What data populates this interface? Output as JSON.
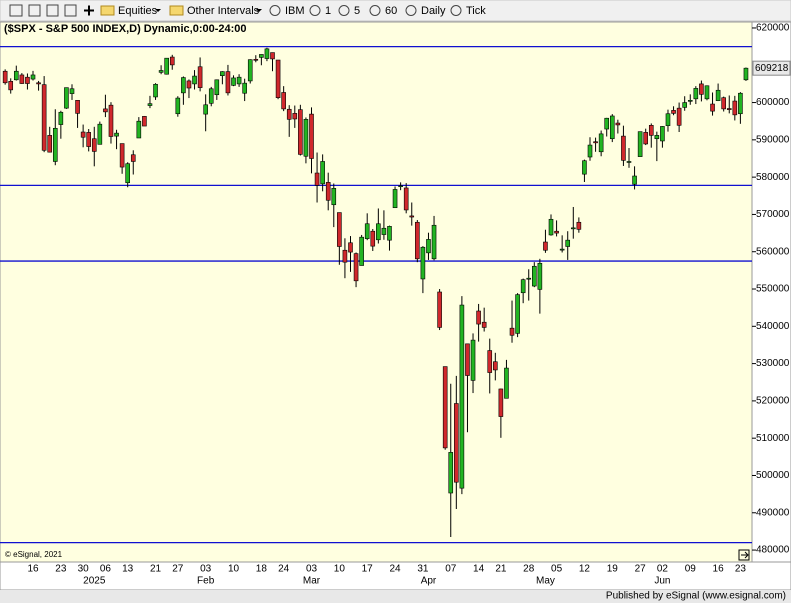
{
  "toolbar": {
    "items": [
      "Equities",
      "Other Intervals",
      "IBM",
      "1",
      "5",
      "60",
      "Daily",
      "Tick"
    ]
  },
  "footer": {
    "publisher": "Published by eSignal (www.esignal.com)",
    "copyright": "© eSignal, 2021"
  },
  "chart_data": {
    "type": "candlestick",
    "title": "($SPX - S&P 500 INDEX,D) Dynamic,0:00-24:00",
    "categories": [
      null,
      null,
      null,
      null,
      null,
      "16",
      null,
      null,
      null,
      null,
      "23",
      null,
      null,
      null,
      "30",
      null,
      null,
      null,
      "06",
      null,
      null,
      null,
      "13",
      null,
      null,
      null,
      null,
      "21",
      null,
      null,
      null,
      "27",
      null,
      null,
      null,
      null,
      "03",
      null,
      null,
      null,
      null,
      "10",
      null,
      null,
      null,
      null,
      "18",
      null,
      null,
      null,
      "24",
      null,
      null,
      null,
      null,
      "03",
      null,
      null,
      null,
      null,
      "10",
      null,
      null,
      null,
      null,
      "17",
      null,
      null,
      null,
      null,
      "24",
      null,
      null,
      null,
      null,
      "31",
      null,
      null,
      null,
      null,
      "07",
      null,
      null,
      null,
      null,
      "14",
      null,
      null,
      null,
      "21",
      null,
      null,
      null,
      null,
      "28",
      null,
      null,
      null,
      null,
      "05",
      null,
      null,
      null,
      null,
      "12",
      null,
      null,
      null,
      null,
      "19",
      null,
      null,
      null,
      null,
      "27",
      null,
      null,
      null,
      "02",
      null,
      null,
      null,
      null,
      "09",
      null,
      null,
      null,
      null,
      "16",
      null,
      null,
      null,
      "23",
      null
    ],
    "month_labels": [
      null,
      null,
      null,
      null,
      null,
      null,
      null,
      null,
      null,
      null,
      null,
      null,
      null,
      null,
      null,
      null,
      "2025",
      null,
      null,
      null,
      null,
      null,
      null,
      null,
      null,
      null,
      null,
      null,
      null,
      null,
      null,
      null,
      null,
      null,
      null,
      null,
      "Feb",
      null,
      null,
      null,
      null,
      null,
      null,
      null,
      null,
      null,
      null,
      null,
      null,
      null,
      null,
      null,
      null,
      null,
      null,
      "Mar",
      null,
      null,
      null,
      null,
      null,
      null,
      null,
      null,
      null,
      null,
      null,
      null,
      null,
      null,
      null,
      null,
      null,
      null,
      null,
      null,
      "Apr",
      null,
      null,
      null,
      null,
      null,
      null,
      null,
      null,
      null,
      null,
      null,
      null,
      null,
      null,
      null,
      null,
      null,
      null,
      null,
      null,
      "May",
      null,
      null,
      null,
      null,
      null,
      null,
      null,
      null,
      null,
      null,
      null,
      null,
      null,
      null,
      null,
      null,
      null,
      null,
      null,
      null,
      "Jun",
      null,
      null,
      null,
      null,
      null,
      null,
      null,
      null,
      null,
      null,
      null,
      null,
      null,
      null,
      null
    ],
    "open": [
      6084,
      6057,
      6061,
      6074,
      6068,
      6063,
      6053,
      6048,
      5912,
      5842,
      5941,
      5985,
      6024,
      6006,
      5921,
      5920,
      5903,
      5888,
      5983,
      5993,
      5910,
      5890,
      5785,
      5860,
      5905,
      5963,
      5992,
      6015,
      6081,
      6076,
      6122,
      5970,
      6026,
      6058,
      6050,
      6096,
      5969,
      5998,
      6021,
      6072,
      6083,
      6046,
      6050,
      6025,
      6058,
      6116,
      6121,
      6118,
      6134,
      6114,
      6027,
      5982,
      5971,
      5981,
      5856,
      5969,
      5811,
      5782,
      5786,
      5726,
      5705,
      5604,
      5624,
      5595,
      5563,
      5635,
      5655,
      5632,
      5646,
      5631,
      5718,
      5776,
      5771,
      5696,
      5679,
      5527,
      5597,
      5581,
      5492,
      5292,
      4953,
      5193,
      4966,
      5353,
      5255,
      5441,
      5411,
      5335,
      5305,
      5232,
      5207,
      5395,
      5381,
      5490,
      5529,
      5508,
      5499,
      5626,
      5645,
      5655,
      5606,
      5614,
      5663,
      5679,
      5808,
      5854,
      5895,
      5868,
      5929,
      5903,
      5945,
      5910,
      5841,
      5781,
      5855,
      5920,
      5939,
      5903,
      5897,
      5938,
      5979,
      5985,
      5987,
      6005,
      6010,
      6050,
      6010,
      5996,
      6005,
      6013,
      5984,
      6004,
      5970,
      6061
    ],
    "high": [
      6089,
      6065,
      6099,
      6079,
      6078,
      6085,
      6058,
      6071,
      5935,
      5982,
      5978,
      6040,
      6049,
      6006,
      5941,
      5929,
      5935,
      5949,
      6021,
      6001,
      5927,
      5890,
      5840,
      5872,
      5961,
      5964,
      6018,
      6052,
      6100,
      6119,
      6128,
      6017,
      6070,
      6062,
      6087,
      6121,
      6022,
      6042,
      6062,
      6084,
      6101,
      6073,
      6076,
      6064,
      6116,
      6127,
      6129,
      6147,
      6134,
      6114,
      6044,
      5993,
      5992,
      5994,
      5960,
      5987,
      5866,
      5861,
      5812,
      5783,
      5705,
      5636,
      5642,
      5598,
      5645,
      5703,
      5661,
      5716,
      5711,
      5670,
      5775,
      5786,
      5784,
      5732,
      5685,
      5615,
      5651,
      5696,
      5500,
      5292,
      5246,
      5267,
      5481,
      5353,
      5381,
      5460,
      5450,
      5367,
      5329,
      5233,
      5310,
      5469,
      5489,
      5528,
      5553,
      5572,
      5581,
      5659,
      5700,
      5684,
      5644,
      5655,
      5720,
      5692,
      5847,
      5907,
      5906,
      5925,
      5959,
      5969,
      5954,
      5938,
      5878,
      5829,
      5922,
      5930,
      5944,
      5922,
      5937,
      5981,
      5990,
      6000,
      6017,
      6022,
      6044,
      6059,
      6046,
      6027,
      6051,
      6016,
      6019,
      6018,
      6028,
      6094
    ],
    "low": [
      6048,
      6024,
      6059,
      6050,
      6035,
      6059,
      6032,
      5867,
      5866,
      5832,
      5903,
      5983,
      6007,
      5932,
      5880,
      5869,
      5829,
      5888,
      5961,
      5890,
      5875,
      5809,
      5773,
      5807,
      5905,
      5938,
      5985,
      6007,
      6076,
      6075,
      6088,
      5962,
      5994,
      6012,
      6035,
      6030,
      5923,
      5990,
      6007,
      6049,
      6019,
      6044,
      6042,
      6004,
      6051,
      6108,
      6100,
      6111,
      6084,
      6009,
      5977,
      5908,
      5932,
      5858,
      5837,
      5810,
      5732,
      5762,
      5711,
      5666,
      5565,
      5529,
      5546,
      5505,
      5563,
      5631,
      5602,
      5622,
      5632,
      5603,
      5718,
      5765,
      5703,
      5670,
      5572,
      5489,
      5578,
      5577,
      5390,
      5069,
      4835,
      4910,
      4950,
      5116,
      5221,
      5359,
      5386,
      5220,
      5255,
      5101,
      5207,
      5356,
      5371,
      5462,
      5469,
      5505,
      5434,
      5597,
      5643,
      5641,
      5598,
      5578,
      5635,
      5651,
      5787,
      5844,
      5868,
      5856,
      5909,
      5894,
      5917,
      5830,
      5825,
      5767,
      5855,
      5886,
      5879,
      5843,
      5879,
      5922,
      5966,
      5921,
      5978,
      5994,
      5996,
      6003,
      6006,
      5965,
      6004,
      5976,
      5971,
      5952,
      5943,
      6058
    ],
    "close": [
      6053,
      6034,
      6084,
      6051,
      6051,
      6074,
      6050,
      5872,
      5867,
      5931,
      5974,
      6040,
      6037,
      5971,
      5907,
      5882,
      5869,
      5942,
      5975,
      5909,
      5918,
      5827,
      5836,
      5842,
      5950,
      5937,
      5997,
      6049,
      6086,
      6119,
      6101,
      6012,
      6067,
      6039,
      6071,
      6040,
      5994,
      6037,
      6061,
      6083,
      6026,
      6066,
      6068,
      6052,
      6115,
      6114,
      6129,
      6144,
      6117,
      6013,
      5983,
      5955,
      5956,
      5861,
      5955,
      5850,
      5778,
      5842,
      5738,
      5770,
      5614,
      5572,
      5599,
      5522,
      5639,
      5675,
      5615,
      5675,
      5663,
      5668,
      5767,
      5777,
      5712,
      5693,
      5581,
      5612,
      5633,
      5671,
      5397,
      5074,
      5062,
      4982,
      5457,
      5268,
      5363,
      5406,
      5397,
      5276,
      5283,
      5158,
      5288,
      5376,
      5485,
      5525,
      5529,
      5561,
      5569,
      5604,
      5687,
      5650,
      5607,
      5631,
      5664,
      5660,
      5844,
      5886,
      5892,
      5916,
      5958,
      5964,
      5940,
      5845,
      5842,
      5803,
      5922,
      5889,
      5912,
      5912,
      5936,
      5970,
      5971,
      5939,
      6000,
      6006,
      6038,
      6022,
      6045,
      5977,
      6033,
      5983,
      5981,
      5967,
      6025,
      6092.18
    ],
    "up_color": "#22b422",
    "down_color": "#d0282c",
    "last_price": {
      "value": 6092.18,
      "label": "609218"
    },
    "hlines": [
      6150,
      5778,
      5575,
      4820
    ],
    "hline_color": "#1010d0",
    "ylim": [
      4768,
      6216
    ],
    "yticks": [
      {
        "value": 6200,
        "label": "620000"
      },
      {
        "value": 6000,
        "label": "600000"
      },
      {
        "value": 5900,
        "label": "590000"
      },
      {
        "value": 5800,
        "label": "580000"
      },
      {
        "value": 5700,
        "label": "570000"
      },
      {
        "value": 5600,
        "label": "560000"
      },
      {
        "value": 5500,
        "label": "550000"
      },
      {
        "value": 5400,
        "label": "540000"
      },
      {
        "value": 5300,
        "label": "530000"
      },
      {
        "value": 5200,
        "label": "520000"
      },
      {
        "value": 5100,
        "label": "510000"
      },
      {
        "value": 5000,
        "label": "500000"
      },
      {
        "value": 4900,
        "label": "490000"
      },
      {
        "value": 4800,
        "label": "480000"
      }
    ],
    "grid": false
  }
}
